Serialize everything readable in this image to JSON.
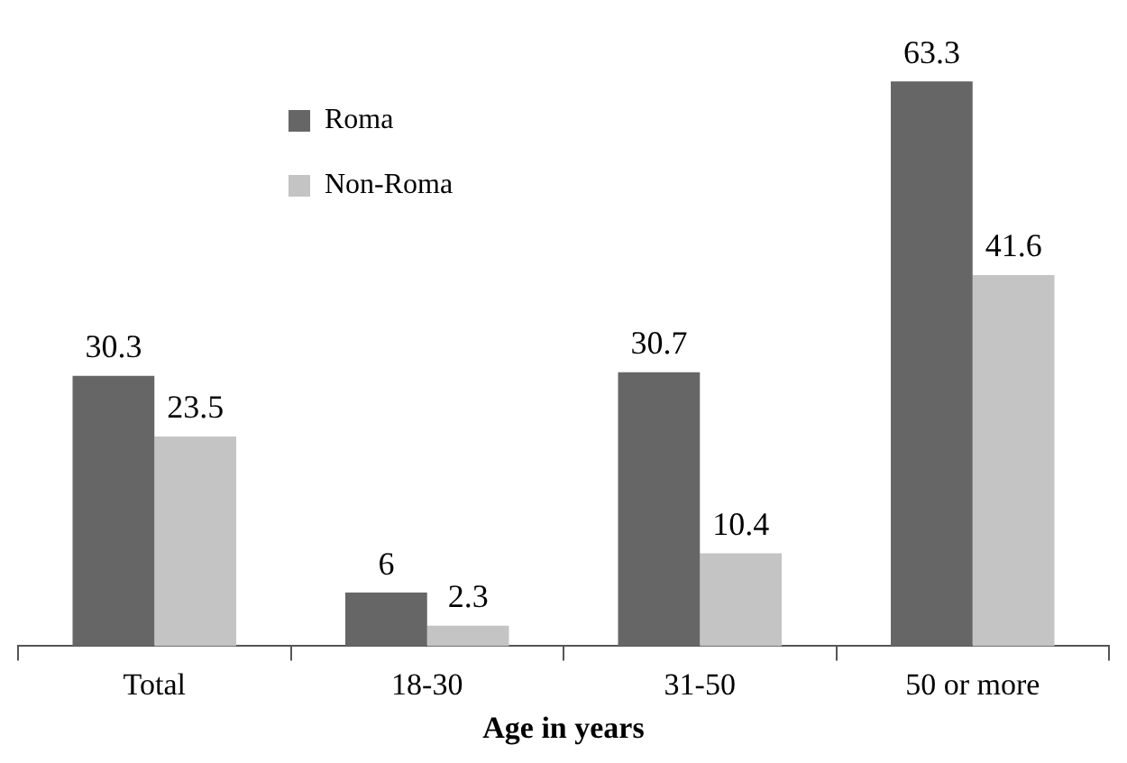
{
  "chart_data": {
    "type": "bar",
    "xlabel": "Age in years",
    "categories": [
      "Total",
      "18-30",
      "31-50",
      "50 or more"
    ],
    "series": [
      {
        "name": "Roma",
        "color": "#666666",
        "values": [
          30.3,
          6,
          30.7,
          63.3
        ]
      },
      {
        "name": "Non-Roma",
        "color": "#c4c4c4",
        "values": [
          23.5,
          2.3,
          10.4,
          41.6
        ]
      }
    ],
    "tick_labels": "x",
    "legend": "top left",
    "data_labels": true
  }
}
